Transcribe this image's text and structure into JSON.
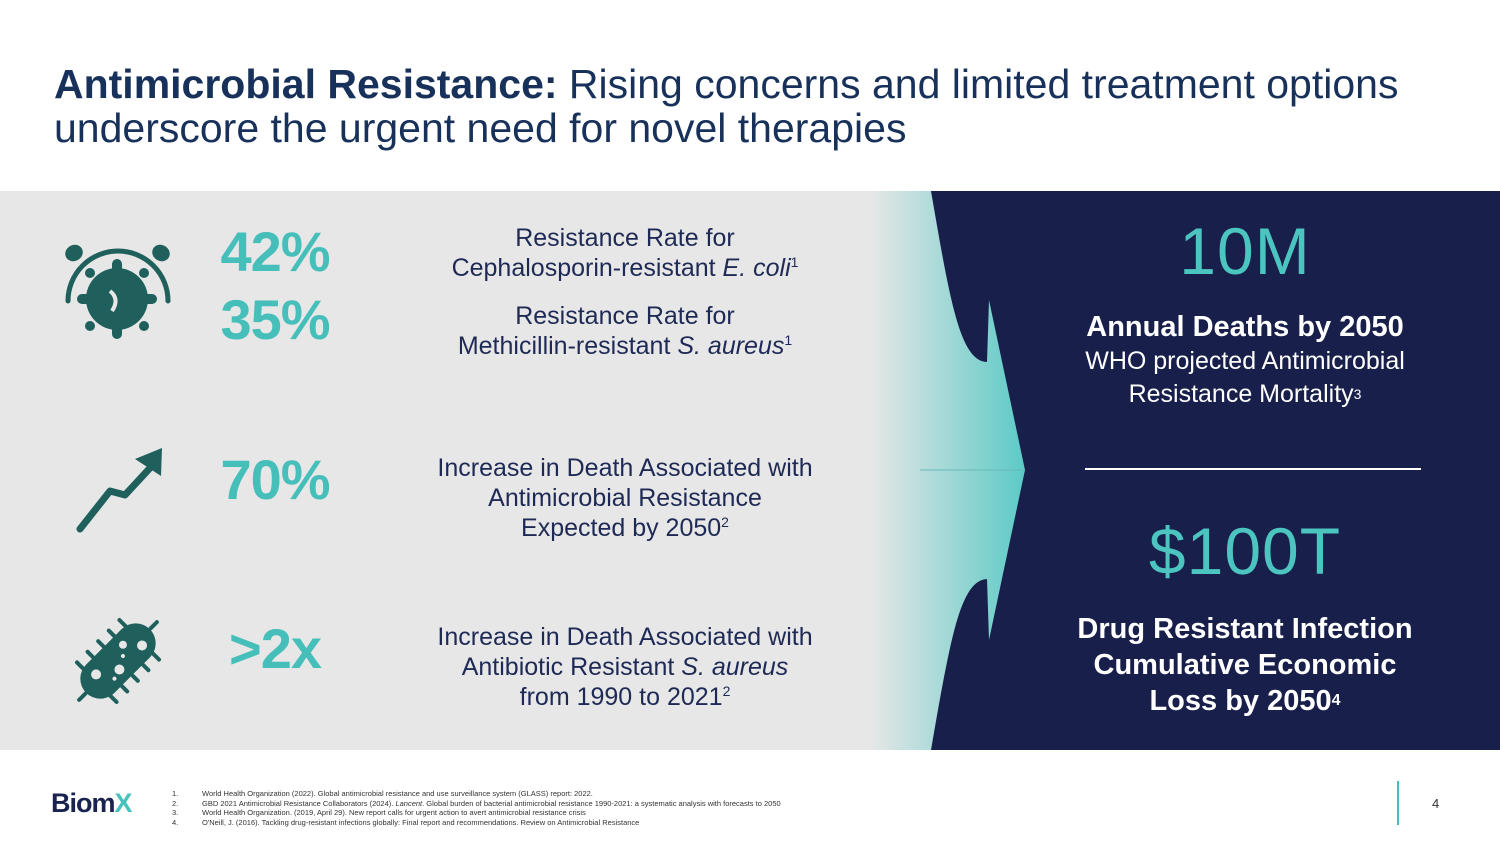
{
  "title": {
    "bold": "Antimicrobial Resistance:",
    "rest": " Rising concerns and limited treatment options underscore the urgent need for novel therapies"
  },
  "stats": [
    {
      "value": "42%",
      "desc": {
        "line1": "Resistance Rate for",
        "pre": "Cephalosporin-resistant ",
        "italic": "E. coli",
        "post": "",
        "sup": "1"
      }
    },
    {
      "value": "35%",
      "desc": {
        "line1": "Resistance Rate for",
        "pre": "Methicillin-resistant ",
        "italic": "S. aureus",
        "post": "",
        "sup": "1"
      }
    },
    {
      "value": "70%",
      "desc": {
        "line1": "Increase in Death Associated with",
        "line2": "Antimicrobial Resistance",
        "pre": "Expected by 2050",
        "sup": "2"
      }
    },
    {
      "value": ">2x",
      "desc": {
        "line1": "Increase in Death Associated with",
        "pre": "Antibiotic Resistant ",
        "italic": "S. aureus",
        "line3": "from 1990 to 2021",
        "sup": "2"
      }
    }
  ],
  "right": {
    "deaths": {
      "value": "10M",
      "heading": "Annual Deaths by 2050",
      "sub1": "WHO projected Antimicrobial",
      "sub2": "Resistance Mortality",
      "sup": "3"
    },
    "economic": {
      "value": "$100T",
      "line1": "Drug Resistant Infection",
      "line2": "Cumulative Economic",
      "line3": "Loss by 2050",
      "sup": "4"
    }
  },
  "footer": {
    "logo_main": "Biom",
    "logo_accent": "X",
    "refs": [
      {
        "n": "1.",
        "text": "World Health Organization (2022). Global antimicrobial resistance and use surveillance system (GLASS) report: 2022."
      },
      {
        "n": "2.",
        "pre": "GBD 2021 Antimicrobial Resistance Collaborators (2024). ",
        "italic": "Lancent",
        "post": ". Global burden of bacterial antimicrobial resistance 1990-2021: a systematic analysis with forecasts to 2050"
      },
      {
        "n": "3.",
        "text": "World Health Organization. (2019, April 29). New report calls for urgent action to avert antimicrobial resistance crisis"
      },
      {
        "n": "4.",
        "text": "O'Neill, J. (2016). Tackling drug-resistant infections globally: Final report and recommendations. Review on Antimicrobial Resistance"
      }
    ],
    "page": "4"
  },
  "colors": {
    "navy": "#171f4a",
    "teal": "#46bfbb",
    "icon": "#1f5f5c",
    "panel": "#e7e7e7"
  }
}
